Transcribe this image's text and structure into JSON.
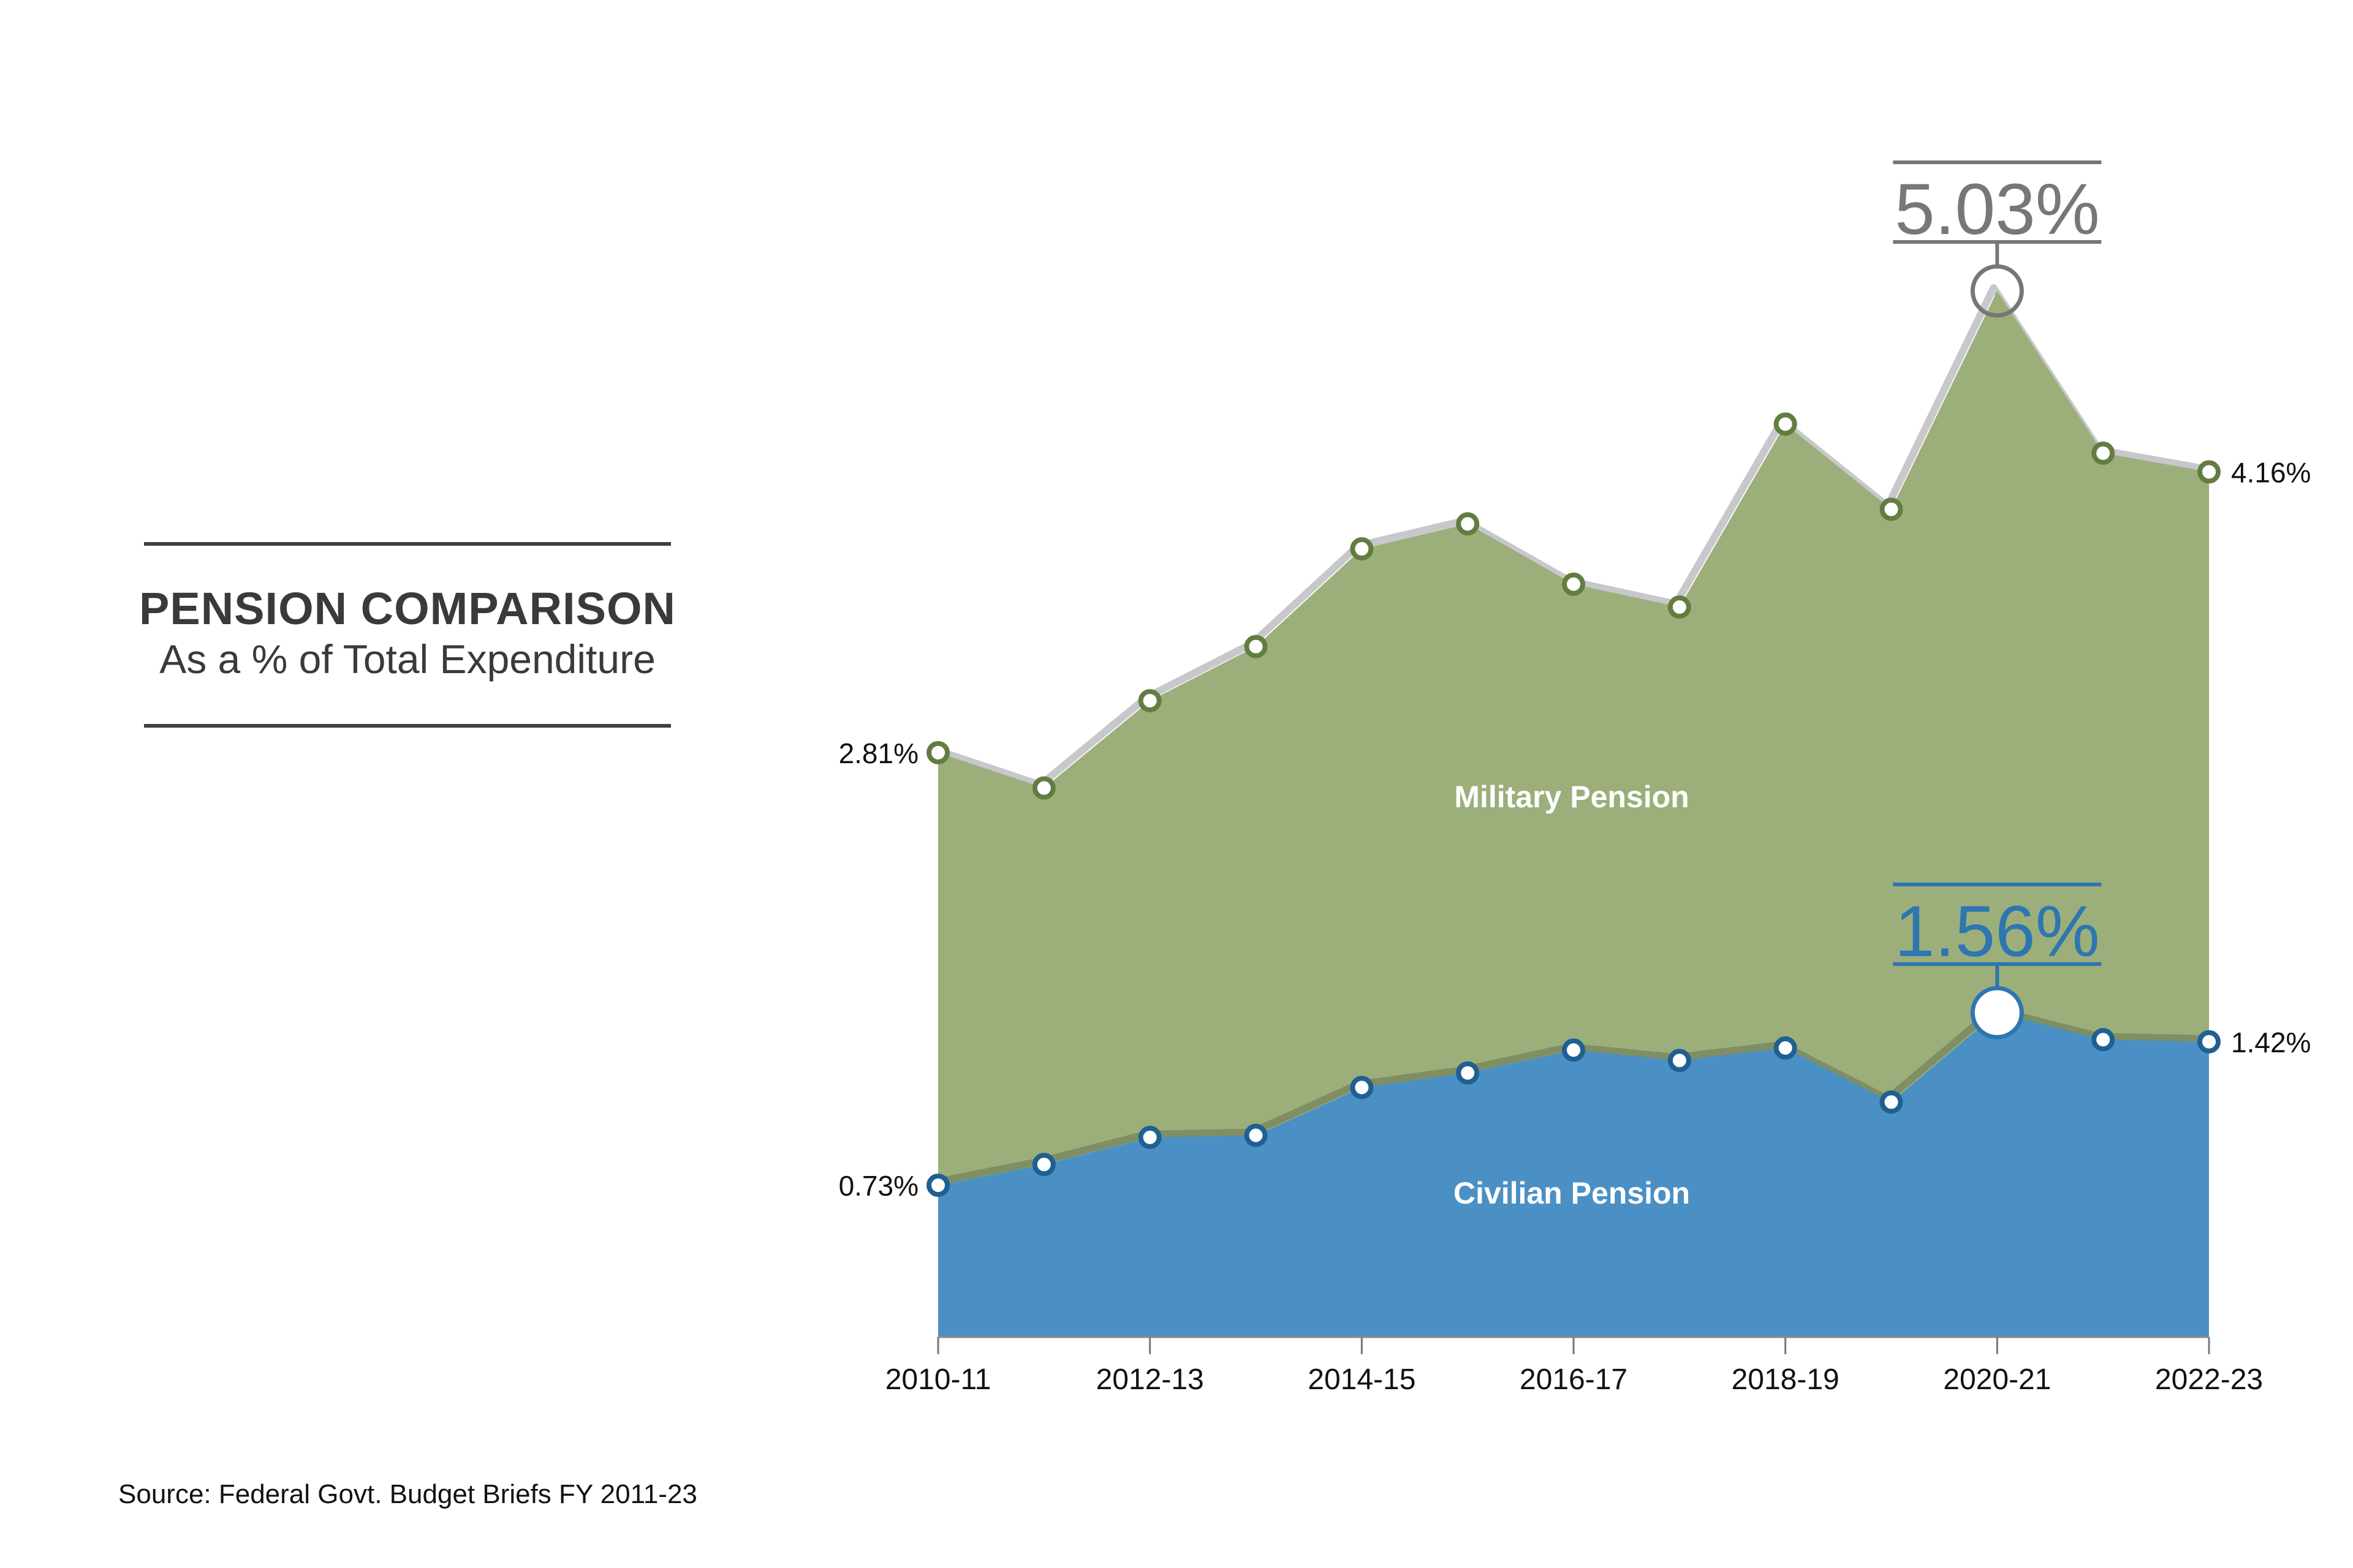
{
  "title": "PENSION COMPARISON",
  "subtitle": "As a % of Total Expenditure",
  "source": "Source: Federal Govt. Budget Briefs FY 2011-23",
  "colors": {
    "military_fill": "#9caf7b",
    "military_marker": "#637d41",
    "civilian_fill": "#4a90c4",
    "civilian_marker": "#1f5f91",
    "peak_gray": "#777777",
    "peak_blue": "#2e76b0"
  },
  "chart_data": {
    "type": "area",
    "x": [
      "2010-11",
      "2011-12",
      "2012-13",
      "2013-14",
      "2014-15",
      "2015-16",
      "2016-17",
      "2017-18",
      "2018-19",
      "2019-20",
      "2020-21",
      "2021-22",
      "2022-23"
    ],
    "x_tick_labels": [
      "2010-11",
      "2012-13",
      "2014-15",
      "2016-17",
      "2018-19",
      "2020-21",
      "2022-23"
    ],
    "stacked": true,
    "series": [
      {
        "name": "Civilian Pension",
        "values": [
          0.73,
          0.83,
          0.96,
          0.97,
          1.2,
          1.27,
          1.38,
          1.33,
          1.39,
          1.13,
          1.56,
          1.43,
          1.42
        ]
      },
      {
        "name": "Military Pension",
        "total_values": [
          2.81,
          2.64,
          3.06,
          3.32,
          3.79,
          3.91,
          3.62,
          3.51,
          4.39,
          3.98,
          5.03,
          4.25,
          4.16
        ]
      }
    ],
    "end_labels": {
      "military_start": "2.81%",
      "military_end": "4.16%",
      "civilian_start": "0.73%",
      "civilian_end": "1.42%"
    },
    "peak_callouts": [
      {
        "series": "Military Pension",
        "x": "2020-21",
        "label": "5.03%"
      },
      {
        "series": "Civilian Pension",
        "x": "2020-21",
        "label": "1.56%"
      }
    ],
    "ylim": [
      0,
      5.03
    ],
    "grid": false,
    "legend": "none"
  }
}
